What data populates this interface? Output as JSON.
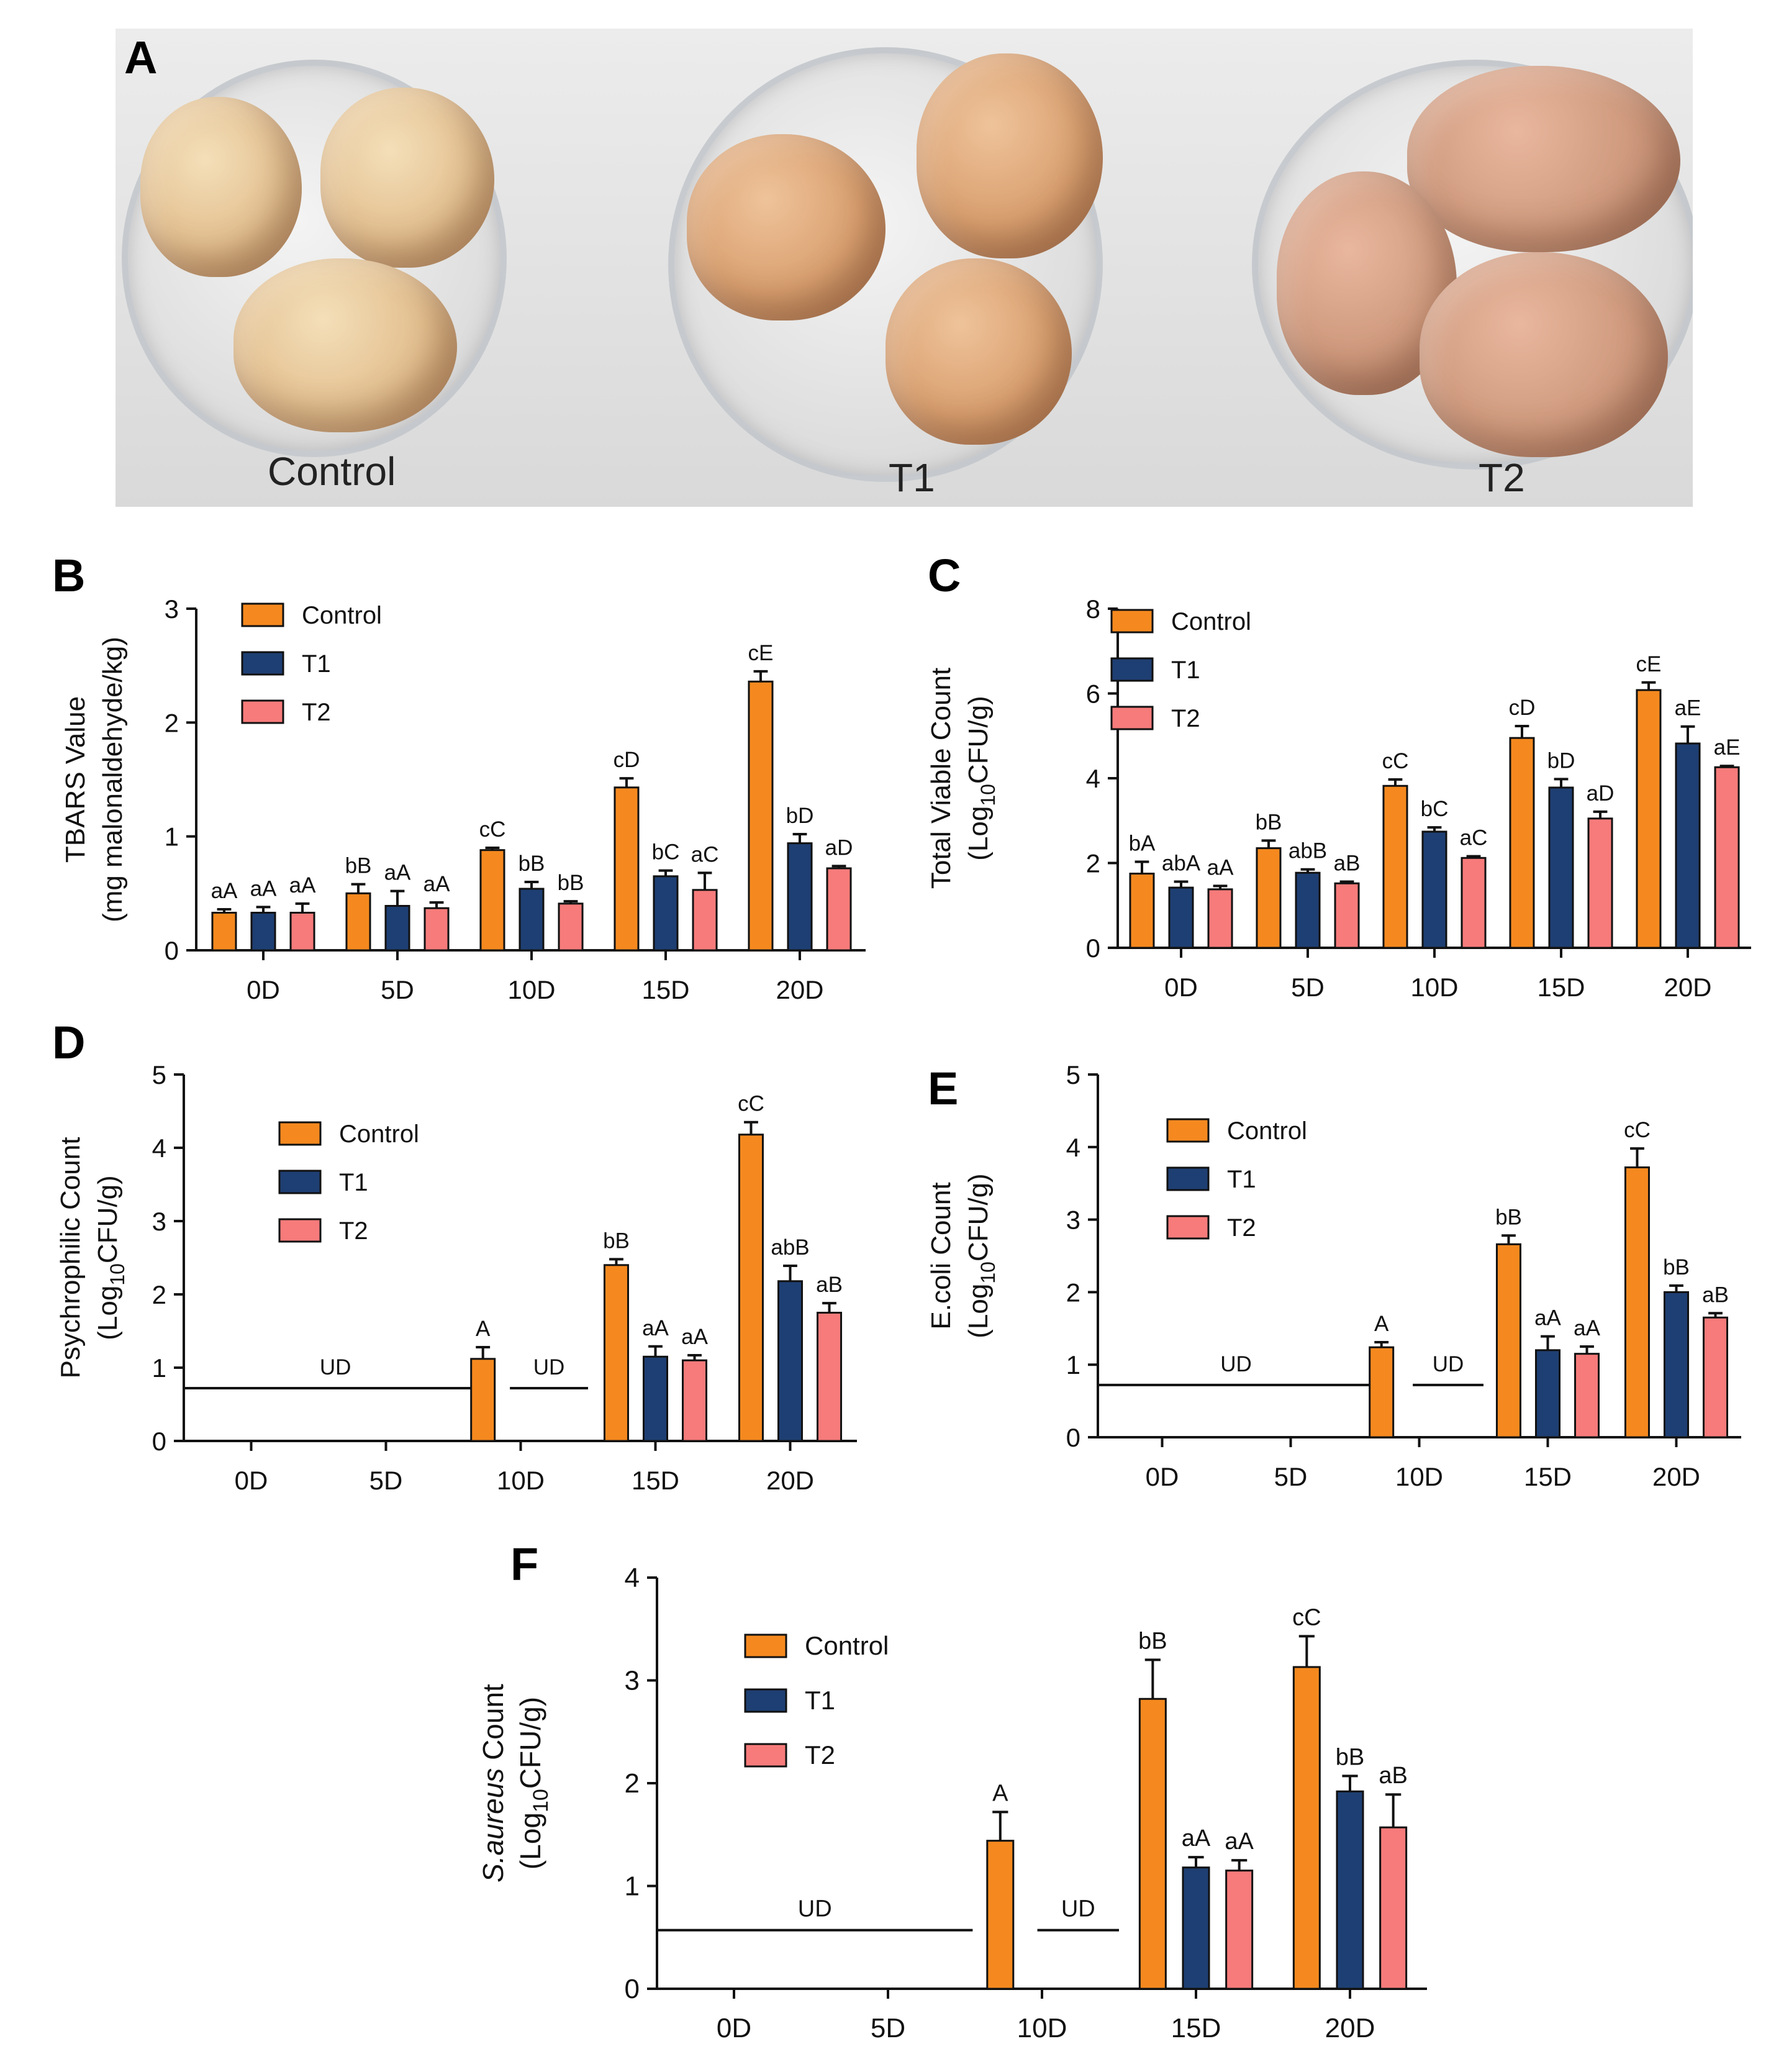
{
  "panels": {
    "A": "A",
    "B": "B",
    "C": "C",
    "D": "D",
    "E": "E",
    "F": "F"
  },
  "photo": {
    "labels": [
      "Control",
      "T1",
      "T2"
    ]
  },
  "colors": {
    "Control": "#f5891f",
    "T1": "#1e3f73",
    "T2": "#f77b7b"
  },
  "chart_data": [
    {
      "id": "B",
      "type": "bar",
      "ylabel_lines": [
        "TBARS Value",
        "(mg malonaldehyde/kg)"
      ],
      "ylim": [
        0,
        3
      ],
      "yticks": [
        0,
        1,
        2,
        3
      ],
      "categories": [
        "0D",
        "5D",
        "10D",
        "15D",
        "20D"
      ],
      "legend": [
        "Control",
        "T1",
        "T2"
      ],
      "series": [
        {
          "name": "Control",
          "values": [
            0.33,
            0.5,
            0.88,
            1.43,
            2.36
          ],
          "errors": [
            0.03,
            0.08,
            0.02,
            0.08,
            0.09
          ],
          "labels": [
            "aA",
            "bB",
            "cC",
            "cD",
            "cE"
          ]
        },
        {
          "name": "T1",
          "values": [
            0.33,
            0.39,
            0.54,
            0.65,
            0.94
          ],
          "errors": [
            0.05,
            0.13,
            0.06,
            0.05,
            0.08
          ],
          "labels": [
            "aA",
            "aA",
            "bB",
            "bC",
            "bD"
          ]
        },
        {
          "name": "T2",
          "values": [
            0.33,
            0.37,
            0.41,
            0.53,
            0.72
          ],
          "errors": [
            0.08,
            0.05,
            0.02,
            0.15,
            0.02
          ],
          "labels": [
            "aA",
            "aA",
            "bB",
            "aC",
            "aD"
          ]
        }
      ],
      "ud": []
    },
    {
      "id": "C",
      "type": "bar",
      "ylabel_lines": [
        "Total Viable Count",
        "(Log10CFU/g)"
      ],
      "ylim": [
        0,
        8
      ],
      "yticks": [
        0,
        2,
        4,
        6,
        8
      ],
      "categories": [
        "0D",
        "5D",
        "10D",
        "15D",
        "20D"
      ],
      "legend": [
        "Control",
        "T1",
        "T2"
      ],
      "series": [
        {
          "name": "Control",
          "values": [
            1.75,
            2.35,
            3.82,
            4.95,
            6.08
          ],
          "errors": [
            0.28,
            0.18,
            0.15,
            0.28,
            0.18
          ],
          "labels": [
            "bA",
            "bB",
            "cC",
            "cD",
            "cE"
          ]
        },
        {
          "name": "T1",
          "values": [
            1.42,
            1.77,
            2.74,
            3.78,
            4.82
          ],
          "errors": [
            0.14,
            0.08,
            0.1,
            0.2,
            0.4
          ],
          "labels": [
            "abA",
            "abB",
            "bC",
            "bD",
            "aE"
          ]
        },
        {
          "name": "T2",
          "values": [
            1.38,
            1.52,
            2.12,
            3.05,
            4.26
          ],
          "errors": [
            0.08,
            0.04,
            0.04,
            0.16,
            0.03
          ],
          "labels": [
            "aA",
            "aB",
            "aC",
            "aD",
            "aE"
          ]
        }
      ],
      "ud": []
    },
    {
      "id": "D",
      "type": "bar",
      "ylabel_lines": [
        "Psychrophilic Count",
        "(Log10CFU/g)"
      ],
      "ylim": [
        0,
        5
      ],
      "yticks": [
        0,
        1,
        2,
        3,
        4,
        5
      ],
      "categories": [
        "0D",
        "5D",
        "10D",
        "15D",
        "20D"
      ],
      "legend": [
        "Control",
        "T1",
        "T2"
      ],
      "series": [
        {
          "name": "Control",
          "values": [
            null,
            null,
            1.12,
            2.4,
            4.18
          ],
          "errors": [
            0,
            0,
            0.16,
            0.08,
            0.17
          ],
          "labels": [
            "",
            "",
            "A",
            "bB",
            "cC"
          ]
        },
        {
          "name": "T1",
          "values": [
            null,
            null,
            null,
            1.15,
            2.18
          ],
          "errors": [
            0,
            0,
            0,
            0.14,
            0.21
          ],
          "labels": [
            "",
            "",
            "",
            "aA",
            "abB"
          ]
        },
        {
          "name": "T2",
          "values": [
            null,
            null,
            null,
            1.1,
            1.75
          ],
          "errors": [
            0,
            0,
            0,
            0.07,
            0.13
          ],
          "labels": [
            "",
            "",
            "",
            "aA",
            "aB"
          ]
        }
      ],
      "ud": [
        {
          "label": "UD",
          "y": 0.72,
          "from": -0.5,
          "to": 1.75
        },
        {
          "label": "UD",
          "y": 0.72,
          "from": 1.92,
          "to": 2.5
        }
      ]
    },
    {
      "id": "E",
      "type": "bar",
      "ylabel_lines": [
        "E.coli Count",
        "(Log10CFU/g)"
      ],
      "ylim": [
        0,
        5
      ],
      "yticks": [
        0,
        1,
        2,
        3,
        4,
        5
      ],
      "categories": [
        "0D",
        "5D",
        "10D",
        "15D",
        "20D"
      ],
      "legend": [
        "Control",
        "T1",
        "T2"
      ],
      "series": [
        {
          "name": "Control",
          "values": [
            null,
            null,
            1.24,
            2.66,
            3.72
          ],
          "errors": [
            0,
            0,
            0.07,
            0.12,
            0.26
          ],
          "labels": [
            "",
            "",
            "A",
            "bB",
            "cC"
          ]
        },
        {
          "name": "T1",
          "values": [
            null,
            null,
            null,
            1.2,
            2.0
          ],
          "errors": [
            0,
            0,
            0,
            0.19,
            0.09
          ],
          "labels": [
            "",
            "",
            "",
            "aA",
            "bB"
          ]
        },
        {
          "name": "T2",
          "values": [
            null,
            null,
            null,
            1.15,
            1.65
          ],
          "errors": [
            0,
            0,
            0,
            0.1,
            0.06
          ],
          "labels": [
            "",
            "",
            "",
            "aA",
            "aB"
          ]
        }
      ],
      "ud": [
        {
          "label": "UD",
          "y": 0.72,
          "from": -0.5,
          "to": 1.65
        },
        {
          "label": "UD",
          "y": 0.72,
          "from": 1.95,
          "to": 2.5
        }
      ]
    },
    {
      "id": "F",
      "type": "bar",
      "ylabel_lines": [
        "S.aureus Count",
        "(Log10CFU/g)"
      ],
      "ylim": [
        0,
        4
      ],
      "yticks": [
        0,
        1,
        2,
        3,
        4
      ],
      "categories": [
        "0D",
        "5D",
        "10D",
        "15D",
        "20D"
      ],
      "legend": [
        "Control",
        "T1",
        "T2"
      ],
      "series": [
        {
          "name": "Control",
          "values": [
            null,
            null,
            1.44,
            2.82,
            3.13
          ],
          "errors": [
            0,
            0,
            0.28,
            0.38,
            0.3
          ],
          "labels": [
            "",
            "",
            "A",
            "bB",
            "cC"
          ]
        },
        {
          "name": "T1",
          "values": [
            null,
            null,
            null,
            1.18,
            1.92
          ],
          "errors": [
            0,
            0,
            0,
            0.1,
            0.15
          ],
          "labels": [
            "",
            "",
            "",
            "aA",
            "bB"
          ]
        },
        {
          "name": "T2",
          "values": [
            null,
            null,
            null,
            1.15,
            1.57
          ],
          "errors": [
            0,
            0,
            0,
            0.1,
            0.32
          ],
          "labels": [
            "",
            "",
            "",
            "aA",
            "aB"
          ]
        }
      ],
      "ud": [
        {
          "label": "UD",
          "y": 0.57,
          "from": -0.5,
          "to": 1.55
        },
        {
          "label": "UD",
          "y": 0.57,
          "from": 1.97,
          "to": 2.5
        }
      ]
    }
  ]
}
